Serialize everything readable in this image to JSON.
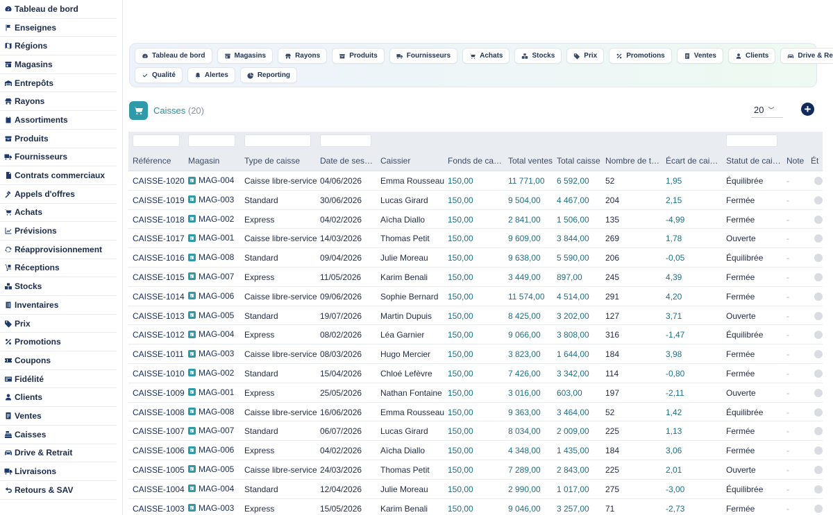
{
  "sidebar": {
    "items": [
      {
        "label": "Tableau de bord",
        "icon": "dashboard-icon"
      },
      {
        "label": "Enseignes",
        "icon": "flag-icon"
      },
      {
        "label": "Régions",
        "icon": "map-icon"
      },
      {
        "label": "Magasins",
        "icon": "store-icon"
      },
      {
        "label": "Entrepôts",
        "icon": "warehouse-icon"
      },
      {
        "label": "Rayons",
        "icon": "shelf-icon"
      },
      {
        "label": "Assortiments",
        "icon": "clipboard-icon"
      },
      {
        "label": "Produits",
        "icon": "box-icon"
      },
      {
        "label": "Fournisseurs",
        "icon": "truck-icon"
      },
      {
        "label": "Contrats commerciaux",
        "icon": "document-icon"
      },
      {
        "label": "Appels d'offres",
        "icon": "gavel-icon"
      },
      {
        "label": "Achats",
        "icon": "cart-icon"
      },
      {
        "label": "Prévisions",
        "icon": "chart-line-icon"
      },
      {
        "label": "Réapprovisionnement",
        "icon": "refresh-icon"
      },
      {
        "label": "Réceptions",
        "icon": "dolly-icon"
      },
      {
        "label": "Stocks",
        "icon": "boxes-icon"
      },
      {
        "label": "Inventaires",
        "icon": "checklist-icon"
      },
      {
        "label": "Prix",
        "icon": "tag-icon"
      },
      {
        "label": "Promotions",
        "icon": "percent-icon"
      },
      {
        "label": "Coupons",
        "icon": "ticket-icon"
      },
      {
        "label": "Fidélité",
        "icon": "card-icon"
      },
      {
        "label": "Clients",
        "icon": "user-icon"
      },
      {
        "label": "Ventes",
        "icon": "receipt-icon"
      },
      {
        "label": "Caisses",
        "icon": "cash-register-icon"
      },
      {
        "label": "Drive & Retrait",
        "icon": "car-icon"
      },
      {
        "label": "Livraisons",
        "icon": "delivery-truck-icon"
      },
      {
        "label": "Retours & SAV",
        "icon": "return-icon"
      }
    ]
  },
  "topnav": {
    "row1": [
      {
        "label": "Tableau de bord",
        "icon": "dashboard-icon"
      },
      {
        "label": "Magasins",
        "icon": "store-icon"
      },
      {
        "label": "Rayons",
        "icon": "shelf-icon"
      },
      {
        "label": "Produits",
        "icon": "box-icon"
      },
      {
        "label": "Fournisseurs",
        "icon": "truck-icon"
      },
      {
        "label": "Achats",
        "icon": "cart-icon"
      },
      {
        "label": "Stocks",
        "icon": "boxes-icon"
      },
      {
        "label": "Prix",
        "icon": "tag-icon"
      },
      {
        "label": "Promotions",
        "icon": "percent-icon"
      },
      {
        "label": "Ventes",
        "icon": "receipt-icon"
      },
      {
        "label": "Clients",
        "icon": "user-icon"
      },
      {
        "label": "Drive & Retrait",
        "icon": "car-icon"
      }
    ],
    "row2": [
      {
        "label": "Qualité",
        "icon": "check-icon"
      },
      {
        "label": "Alertes",
        "icon": "bell-icon"
      },
      {
        "label": "Reporting",
        "icon": "pie-chart-icon"
      }
    ]
  },
  "page": {
    "title": "Caisses",
    "count": "(20)",
    "per_page": "20",
    "accent": "#2f9aa8",
    "add_label": "+"
  },
  "table": {
    "columns": [
      "Référence",
      "Magasin",
      "Type de caisse",
      "Date de ses…",
      "Caissier",
      "Fonds de cai…",
      "Total ventes",
      "Total caisse",
      "Nombre de ti…",
      "Écart de cais…",
      "Statut de cai…",
      "Note",
      "Ét"
    ],
    "rows": [
      [
        "CAISSE-1020",
        "MAG-004",
        "Caisse libre-service",
        "04/06/2026",
        "Emma Rousseau",
        "150,00",
        "11 771,00",
        "6 592,00",
        "52",
        "1,95",
        "Équilibrée",
        "-"
      ],
      [
        "CAISSE-1019",
        "MAG-003",
        "Standard",
        "30/06/2026",
        "Lucas Girard",
        "150,00",
        "9 504,00",
        "4 467,00",
        "204",
        "2,15",
        "Fermée",
        "-"
      ],
      [
        "CAISSE-1018",
        "MAG-002",
        "Express",
        "04/02/2026",
        "Aïcha Diallo",
        "150,00",
        "2 841,00",
        "1 506,00",
        "135",
        "-4,99",
        "Fermée",
        "-"
      ],
      [
        "CAISSE-1017",
        "MAG-001",
        "Caisse libre-service",
        "14/03/2026",
        "Thomas Petit",
        "150,00",
        "9 609,00",
        "3 844,00",
        "269",
        "1,78",
        "Ouverte",
        "-"
      ],
      [
        "CAISSE-1016",
        "MAG-008",
        "Standard",
        "09/04/2026",
        "Julie Moreau",
        "150,00",
        "9 638,00",
        "5 590,00",
        "206",
        "-0,05",
        "Équilibrée",
        "-"
      ],
      [
        "CAISSE-1015",
        "MAG-007",
        "Express",
        "11/05/2026",
        "Karim Benali",
        "150,00",
        "3 449,00",
        "897,00",
        "245",
        "4,39",
        "Fermée",
        "-"
      ],
      [
        "CAISSE-1014",
        "MAG-006",
        "Caisse libre-service",
        "09/06/2026",
        "Sophie Bernard",
        "150,00",
        "11 574,00",
        "4 514,00",
        "291",
        "4,20",
        "Fermée",
        "-"
      ],
      [
        "CAISSE-1013",
        "MAG-005",
        "Standard",
        "19/07/2026",
        "Martin Dupuis",
        "150,00",
        "8 425,00",
        "3 202,00",
        "127",
        "3,71",
        "Ouverte",
        "-"
      ],
      [
        "CAISSE-1012",
        "MAG-004",
        "Express",
        "08/02/2026",
        "Léa Garnier",
        "150,00",
        "9 066,00",
        "3 808,00",
        "316",
        "-1,47",
        "Équilibrée",
        "-"
      ],
      [
        "CAISSE-1011",
        "MAG-003",
        "Caisse libre-service",
        "08/03/2026",
        "Hugo Mercier",
        "150,00",
        "3 823,00",
        "1 644,00",
        "184",
        "3,98",
        "Fermée",
        "-"
      ],
      [
        "CAISSE-1010",
        "MAG-002",
        "Standard",
        "15/04/2026",
        "Chloé Lefèvre",
        "150,00",
        "7 426,00",
        "3 342,00",
        "114",
        "-0,80",
        "Fermée",
        "-"
      ],
      [
        "CAISSE-1009",
        "MAG-001",
        "Express",
        "25/05/2026",
        "Nathan Fontaine",
        "150,00",
        "3 016,00",
        "603,00",
        "197",
        "-2,11",
        "Ouverte",
        "-"
      ],
      [
        "CAISSE-1008",
        "MAG-008",
        "Caisse libre-service",
        "16/06/2026",
        "Emma Rousseau",
        "150,00",
        "9 363,00",
        "3 464,00",
        "52",
        "1,42",
        "Équilibrée",
        "-"
      ],
      [
        "CAISSE-1007",
        "MAG-007",
        "Standard",
        "06/07/2026",
        "Lucas Girard",
        "150,00",
        "8 034,00",
        "2 009,00",
        "225",
        "1,13",
        "Fermée",
        "-"
      ],
      [
        "CAISSE-1006",
        "MAG-006",
        "Express",
        "04/02/2026",
        "Aïcha Diallo",
        "150,00",
        "4 348,00",
        "1 435,00",
        "184",
        "3,06",
        "Fermée",
        "-"
      ],
      [
        "CAISSE-1005",
        "MAG-005",
        "Caisse libre-service",
        "24/03/2026",
        "Thomas Petit",
        "150,00",
        "7 289,00",
        "2 843,00",
        "225",
        "2,01",
        "Ouverte",
        "-"
      ],
      [
        "CAISSE-1004",
        "MAG-004",
        "Standard",
        "12/04/2026",
        "Julie Moreau",
        "150,00",
        "2 990,00",
        "1 017,00",
        "275",
        "-3,00",
        "Équilibrée",
        "-"
      ],
      [
        "CAISSE-1003",
        "MAG-003",
        "Express",
        "15/05/2026",
        "Karim Benali",
        "150,00",
        "9 046,00",
        "3 257,00",
        "71",
        "-2,73",
        "Fermée",
        "-"
      ]
    ]
  }
}
